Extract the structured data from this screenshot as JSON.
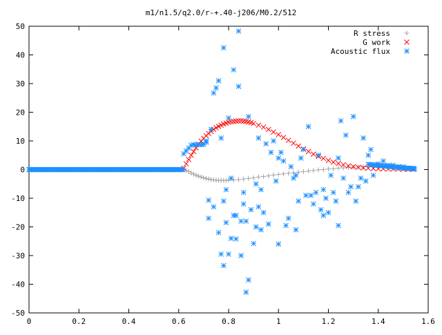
{
  "chart_data": {
    "type": "scatter",
    "title": "m1/n1.5/q2.0/r-+.40-j206/M0.2/512",
    "xlabel": "",
    "ylabel": "",
    "xlim": [
      0,
      1.6
    ],
    "ylim": [
      -50,
      50
    ],
    "xticks": [
      "0",
      "0.2",
      "0.4",
      "0.6",
      "0.8",
      "1",
      "1.2",
      "1.4",
      "1.6"
    ],
    "yticks": [
      "50",
      "40",
      "30",
      "20",
      "10",
      "0",
      "-10",
      "-20",
      "-30",
      "-40",
      "-50"
    ],
    "grid": false,
    "legend_position": "top-right",
    "series": [
      {
        "name": "R stress",
        "marker": "plus",
        "color": "#a0a0a0",
        "x": [
          0.62,
          0.63,
          0.64,
          0.65,
          0.66,
          0.67,
          0.68,
          0.69,
          0.7,
          0.71,
          0.72,
          0.73,
          0.74,
          0.75,
          0.76,
          0.77,
          0.78,
          0.79,
          0.8,
          0.82,
          0.84,
          0.86,
          0.88,
          0.9,
          0.92,
          0.94,
          0.96,
          0.98,
          1.0,
          1.02,
          1.04,
          1.06,
          1.08,
          1.1,
          1.12,
          1.14,
          1.16,
          1.18,
          1.2,
          1.22,
          1.24,
          1.26,
          1.28,
          1.3,
          1.32,
          1.34,
          1.36,
          1.38,
          1.4,
          1.42,
          1.44,
          1.46,
          1.48,
          1.5,
          1.52,
          1.54
        ],
        "y": [
          0.2,
          -0.3,
          -0.7,
          -1.2,
          -1.6,
          -2.0,
          -2.3,
          -2.6,
          -2.9,
          -3.1,
          -3.3,
          -3.5,
          -3.6,
          -3.7,
          -3.8,
          -3.8,
          -3.8,
          -3.8,
          -3.7,
          -3.6,
          -3.5,
          -3.3,
          -3.1,
          -2.9,
          -2.6,
          -2.4,
          -2.2,
          -1.9,
          -1.7,
          -1.5,
          -1.3,
          -1.1,
          -0.9,
          -0.7,
          -0.5,
          -0.3,
          -0.1,
          0.0,
          0.2,
          0.3,
          0.5,
          0.6,
          0.7,
          0.8,
          0.9,
          1.0,
          1.0,
          1.0,
          1.0,
          0.9,
          0.8,
          0.6,
          0.5,
          0.3,
          0.2,
          0.1
        ]
      },
      {
        "name": "G work",
        "marker": "cross",
        "color": "#ff0000",
        "x": [
          0.62,
          0.63,
          0.64,
          0.65,
          0.66,
          0.67,
          0.68,
          0.69,
          0.7,
          0.71,
          0.72,
          0.73,
          0.74,
          0.75,
          0.76,
          0.77,
          0.78,
          0.79,
          0.8,
          0.81,
          0.82,
          0.83,
          0.84,
          0.85,
          0.86,
          0.87,
          0.88,
          0.89,
          0.9,
          0.92,
          0.94,
          0.96,
          0.98,
          1.0,
          1.02,
          1.04,
          1.06,
          1.08,
          1.1,
          1.12,
          1.14,
          1.16,
          1.18,
          1.2,
          1.22,
          1.24,
          1.26,
          1.28,
          1.3,
          1.32,
          1.34,
          1.36,
          1.38,
          1.4,
          1.42,
          1.44,
          1.46,
          1.48,
          1.5,
          1.52,
          1.54
        ],
        "y": [
          0.5,
          2.0,
          3.5,
          5.0,
          6.3,
          7.6,
          8.8,
          9.9,
          10.9,
          11.8,
          12.6,
          13.3,
          14.0,
          14.6,
          15.1,
          15.5,
          15.9,
          16.2,
          16.5,
          16.7,
          16.8,
          16.9,
          17.0,
          17.0,
          16.9,
          16.8,
          16.6,
          16.4,
          16.1,
          15.5,
          14.8,
          14.0,
          13.1,
          12.2,
          11.2,
          10.2,
          9.2,
          8.2,
          7.2,
          6.3,
          5.4,
          4.6,
          3.9,
          3.2,
          2.6,
          2.1,
          1.7,
          1.3,
          1.0,
          0.8,
          0.6,
          0.5,
          0.4,
          0.3,
          0.3,
          0.2,
          0.2,
          0.2,
          0.1,
          0.1,
          0.1
        ]
      },
      {
        "name": "Acoustic flux",
        "marker": "star",
        "color": "#1e90ff",
        "x": [
          0.0,
          0.02,
          0.04,
          0.06,
          0.08,
          0.1,
          0.12,
          0.14,
          0.16,
          0.18,
          0.2,
          0.22,
          0.24,
          0.26,
          0.28,
          0.3,
          0.32,
          0.34,
          0.36,
          0.38,
          0.4,
          0.42,
          0.44,
          0.46,
          0.48,
          0.5,
          0.52,
          0.54,
          0.56,
          0.58,
          0.6,
          0.62,
          0.63,
          0.64,
          0.65,
          0.66,
          0.67,
          0.68,
          0.69,
          0.7,
          0.71,
          0.72,
          0.73,
          0.74,
          0.75,
          0.76,
          0.77,
          0.78,
          0.78,
          0.79,
          0.8,
          0.8,
          0.81,
          0.82,
          0.83,
          0.84,
          0.84,
          0.85,
          0.86,
          0.87,
          0.88,
          0.88,
          0.9,
          0.91,
          0.92,
          0.93,
          0.94,
          0.96,
          0.98,
          1.0,
          1.0,
          1.02,
          1.03,
          1.05,
          1.07,
          1.08,
          1.1,
          1.12,
          1.14,
          1.16,
          1.18,
          1.2,
          1.22,
          1.24,
          1.25,
          1.27,
          1.28,
          1.3,
          1.32,
          1.34,
          1.36,
          1.38,
          1.4,
          1.42,
          1.44,
          1.46,
          1.48,
          1.5,
          1.52,
          1.54,
          0.74,
          0.76,
          0.78,
          0.82,
          0.86,
          0.92,
          0.97,
          1.04,
          1.11,
          1.17,
          1.23,
          1.29,
          1.35,
          0.72,
          0.77,
          0.81,
          0.89,
          0.95,
          1.06,
          1.13,
          1.19,
          1.26,
          1.31,
          1.37,
          0.83,
          0.87,
          0.93,
          0.99,
          1.09,
          1.15,
          1.21,
          1.33,
          0.71,
          0.79,
          0.85,
          0.91,
          1.01,
          1.07,
          1.18,
          1.24
        ],
        "y": [
          0,
          0,
          0,
          0,
          0,
          0,
          0,
          0,
          0,
          0,
          0,
          0,
          0,
          0,
          0,
          0,
          0,
          0,
          0,
          0,
          0,
          0,
          0,
          0,
          0,
          0,
          0,
          0,
          0,
          0,
          0,
          5.5,
          6.5,
          7.5,
          8.5,
          8.7,
          8.7,
          8.7,
          8.7,
          8.7,
          10.0,
          -10.7,
          14.0,
          26.7,
          28.5,
          31.0,
          -29.5,
          42.5,
          -33.5,
          -18.5,
          18.0,
          -29.5,
          -24.0,
          34.8,
          -24.2,
          48.3,
          29.0,
          -30.0,
          -12.0,
          -42.8,
          -38.5,
          18.5,
          -25.8,
          -5.0,
          11.0,
          -7.0,
          -15.0,
          -19.0,
          10.0,
          4.0,
          -26.0,
          3.0,
          -19.5,
          1.0,
          -21.0,
          -11.0,
          7.0,
          15.0,
          -12.0,
          5.0,
          -16.0,
          -15.0,
          -8.0,
          -19.5,
          17.0,
          12.0,
          -8.0,
          18.5,
          -6.0,
          11.0,
          5.0,
          -2.0,
          2.0,
          3.0,
          1.5,
          1.5,
          1.0,
          1.0,
          0.5,
          0.5,
          -13.0,
          -22.0,
          -11.0,
          -16.0,
          -8.0,
          -13.0,
          6.0,
          -17.0,
          -9.0,
          -14.0,
          -11.0,
          -6.0,
          -4.0,
          -17.0,
          11.0,
          -3.0,
          -14.0,
          9.0,
          -3.0,
          -9.0,
          -10.0,
          -3.0,
          -11.0,
          7.0,
          -16.0,
          -18.0,
          -21.0,
          -4.0,
          4.0,
          -8.0,
          -2.0,
          -3.0,
          9.5,
          -7.0,
          -18.0,
          -20.0,
          6.0,
          -2.0,
          -7.0,
          4.0
        ]
      }
    ]
  }
}
